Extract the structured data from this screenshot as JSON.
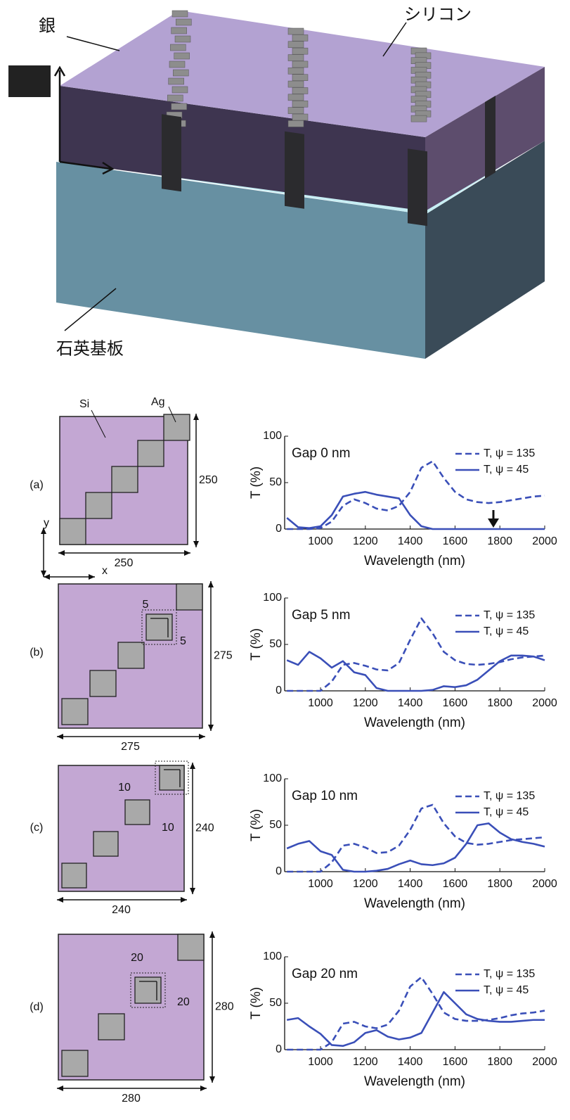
{
  "diagram": {
    "labels": {
      "silver": "銀",
      "silicon": "シリコン",
      "substrate": "石英基板"
    }
  },
  "schematics": [
    {
      "panel": "(a)",
      "side_label": "250",
      "bottom_label": "250",
      "material_labels": [
        "Si",
        "Ag"
      ],
      "axis_labels": [
        "y",
        "x"
      ]
    },
    {
      "panel": "(b)",
      "side_label": "275",
      "bottom_label": "275",
      "gap_labels": [
        "5",
        "5"
      ]
    },
    {
      "panel": "(c)",
      "side_label": "240",
      "bottom_label": "240",
      "gap_labels": [
        "10",
        "10"
      ]
    },
    {
      "panel": "(d)",
      "side_label": "280",
      "bottom_label": "280",
      "gap_labels": [
        "20",
        "20"
      ]
    }
  ],
  "chart_data": [
    {
      "type": "line",
      "annotation": "Gap 0 nm",
      "x_label": "Wavelength (nm)",
      "y_label": "T (%)",
      "xlim": [
        840,
        2000
      ],
      "ylim": [
        0,
        100
      ],
      "xticks": [
        1000,
        1200,
        1400,
        1600,
        1800,
        2000
      ],
      "yticks": [
        0,
        50,
        100
      ],
      "x": [
        850,
        900,
        950,
        1000,
        1050,
        1100,
        1150,
        1200,
        1250,
        1300,
        1350,
        1400,
        1450,
        1500,
        1550,
        1600,
        1650,
        1700,
        1750,
        1800,
        1850,
        1900,
        1950,
        2000
      ],
      "series": [
        {
          "name": "T, ψ = 135",
          "color": "#3a4fb8",
          "style": "dashed",
          "values": [
            0,
            0,
            0,
            1,
            8,
            25,
            32,
            28,
            22,
            20,
            25,
            40,
            66,
            73,
            55,
            40,
            32,
            29,
            28,
            29,
            31,
            33,
            35,
            36
          ]
        },
        {
          "name": "T, ψ = 45",
          "color": "#3a4fb8",
          "style": "solid",
          "values": [
            12,
            2,
            1,
            3,
            15,
            35,
            38,
            40,
            37,
            35,
            33,
            15,
            3,
            0,
            0,
            0,
            0,
            0,
            0,
            0,
            0,
            0,
            0,
            0
          ]
        }
      ]
    },
    {
      "type": "line",
      "annotation": "Gap 5 nm",
      "x_label": "Wavelength (nm)",
      "y_label": "T (%)",
      "xlim": [
        840,
        2000
      ],
      "ylim": [
        0,
        100
      ],
      "xticks": [
        1000,
        1200,
        1400,
        1600,
        1800,
        2000
      ],
      "yticks": [
        0,
        50,
        100
      ],
      "x": [
        850,
        900,
        950,
        1000,
        1050,
        1100,
        1150,
        1200,
        1250,
        1300,
        1350,
        1400,
        1450,
        1500,
        1550,
        1600,
        1650,
        1700,
        1750,
        1800,
        1850,
        1900,
        1950,
        2000
      ],
      "series": [
        {
          "name": "T, ψ = 135",
          "color": "#3a4fb8",
          "style": "dashed",
          "values": [
            0,
            0,
            0,
            0,
            10,
            28,
            30,
            27,
            23,
            22,
            30,
            55,
            78,
            62,
            42,
            33,
            29,
            28,
            29,
            31,
            34,
            36,
            37,
            38
          ]
        },
        {
          "name": "T, ψ = 45",
          "color": "#3a4fb8",
          "style": "solid",
          "values": [
            33,
            28,
            42,
            35,
            25,
            32,
            20,
            17,
            3,
            0,
            0,
            0,
            0,
            1,
            5,
            4,
            6,
            12,
            22,
            32,
            38,
            38,
            37,
            33
          ]
        }
      ]
    },
    {
      "type": "line",
      "annotation": "Gap 10 nm",
      "x_label": "Wavelength (nm)",
      "y_label": "T (%)",
      "xlim": [
        840,
        2000
      ],
      "ylim": [
        0,
        100
      ],
      "xticks": [
        1000,
        1200,
        1400,
        1600,
        1800,
        2000
      ],
      "yticks": [
        0,
        50,
        100
      ],
      "x": [
        850,
        900,
        950,
        1000,
        1050,
        1100,
        1150,
        1200,
        1250,
        1300,
        1350,
        1400,
        1450,
        1500,
        1550,
        1600,
        1650,
        1700,
        1750,
        1800,
        1850,
        1900,
        1950,
        2000
      ],
      "series": [
        {
          "name": "T, ψ = 135",
          "color": "#3a4fb8",
          "style": "dashed",
          "values": [
            0,
            0,
            0,
            0,
            10,
            28,
            30,
            26,
            20,
            21,
            28,
            45,
            68,
            72,
            52,
            38,
            31,
            29,
            30,
            32,
            34,
            35,
            36,
            37
          ]
        },
        {
          "name": "T, ψ = 45",
          "color": "#3a4fb8",
          "style": "solid",
          "values": [
            25,
            30,
            33,
            22,
            18,
            2,
            0,
            0,
            1,
            3,
            8,
            12,
            8,
            7,
            9,
            15,
            30,
            50,
            52,
            42,
            35,
            32,
            30,
            27
          ]
        }
      ]
    },
    {
      "type": "line",
      "annotation": "Gap 20 nm",
      "x_label": "Wavelength (nm)",
      "y_label": "T (%)",
      "xlim": [
        840,
        2000
      ],
      "ylim": [
        0,
        100
      ],
      "xticks": [
        1000,
        1200,
        1400,
        1600,
        1800,
        2000
      ],
      "yticks": [
        0,
        50,
        100
      ],
      "x": [
        850,
        900,
        950,
        1000,
        1050,
        1100,
        1150,
        1200,
        1250,
        1300,
        1350,
        1400,
        1450,
        1500,
        1550,
        1600,
        1650,
        1700,
        1750,
        1800,
        1850,
        1900,
        1950,
        2000
      ],
      "series": [
        {
          "name": "T, ψ = 135",
          "color": "#3a4fb8",
          "style": "dashed",
          "values": [
            0,
            0,
            0,
            0,
            8,
            28,
            30,
            25,
            23,
            27,
            42,
            68,
            78,
            60,
            40,
            33,
            31,
            31,
            32,
            34,
            37,
            39,
            40,
            42
          ]
        },
        {
          "name": "T, ψ = 45",
          "color": "#3a4fb8",
          "style": "solid",
          "values": [
            32,
            34,
            25,
            17,
            5,
            4,
            8,
            18,
            21,
            14,
            11,
            13,
            18,
            40,
            62,
            50,
            38,
            33,
            31,
            30,
            30,
            31,
            32,
            32
          ]
        }
      ]
    }
  ]
}
